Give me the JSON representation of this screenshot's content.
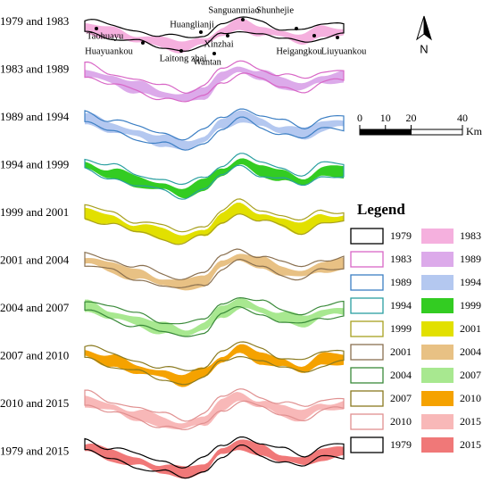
{
  "panels": [
    {
      "label": "1979 and 1983",
      "outline": "#000000",
      "fill": "#f5b0de"
    },
    {
      "label": "1983 and 1989",
      "outline": "#d866c6",
      "fill": "#dcaaea"
    },
    {
      "label": "1989 and 1994",
      "outline": "#3c7fc4",
      "fill": "#b4c8f0"
    },
    {
      "label": "1994 and 1999",
      "outline": "#2a9fa0",
      "fill": "#33cc22"
    },
    {
      "label": "1999 and 2001",
      "outline": "#a8a020",
      "fill": "#e2e000"
    },
    {
      "label": "2001 and 2004",
      "outline": "#8a7050",
      "fill": "#e8c184"
    },
    {
      "label": "2004 and 2007",
      "outline": "#3a8a3a",
      "fill": "#a8e890"
    },
    {
      "label": "2007 and 2010",
      "outline": "#8a7a20",
      "fill": "#f5a200"
    },
    {
      "label": "2010 and 2015",
      "outline": "#e09090",
      "fill": "#f8b8b8"
    },
    {
      "label": "1979 and 2015",
      "outline": "#000000",
      "fill": "#f07878"
    }
  ],
  "places": [
    "Taohuayu",
    "Huayuankou",
    "Laitong zhai",
    "Wantan",
    "Xinzhai",
    "Huanglianji",
    "Sanguanmiao",
    "Shunhejie",
    "Heigangkou",
    "Liuyuankou"
  ],
  "north": "N",
  "scale": {
    "ticks": [
      0,
      10,
      20,
      40
    ],
    "unit": "Km"
  },
  "legend": {
    "title": "Legend",
    "outlines": [
      {
        "label": "1979",
        "color": "#000000"
      },
      {
        "label": "1983",
        "color": "#d866c6"
      },
      {
        "label": "1989",
        "color": "#3c7fc4"
      },
      {
        "label": "1994",
        "color": "#2a9fa0"
      },
      {
        "label": "1999",
        "color": "#a8a020"
      },
      {
        "label": "2001",
        "color": "#8a7050"
      },
      {
        "label": "2004",
        "color": "#3a8a3a"
      },
      {
        "label": "2007",
        "color": "#8a7a20"
      },
      {
        "label": "2010",
        "color": "#e09090"
      },
      {
        "label": "1979",
        "color": "#000000"
      }
    ],
    "fills": [
      {
        "label": "1983",
        "color": "#f5b0de"
      },
      {
        "label": "1989",
        "color": "#dcaaea"
      },
      {
        "label": "1994",
        "color": "#b4c8f0"
      },
      {
        "label": "1999",
        "color": "#33cc22"
      },
      {
        "label": "2001",
        "color": "#e2e000"
      },
      {
        "label": "2004",
        "color": "#e8c184"
      },
      {
        "label": "2007",
        "color": "#a8e890"
      },
      {
        "label": "2010",
        "color": "#f5a200"
      },
      {
        "label": "2015",
        "color": "#f8b8b8"
      },
      {
        "label": "2015",
        "color": "#f07878"
      }
    ]
  }
}
